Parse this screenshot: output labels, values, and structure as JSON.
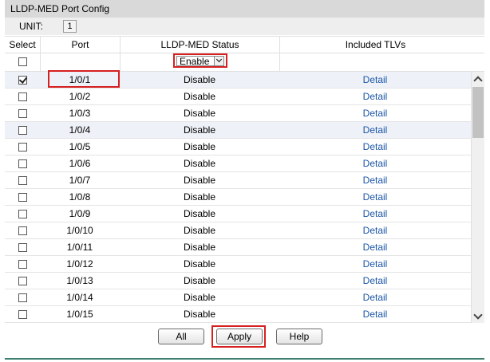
{
  "panel": {
    "title": "LLDP-MED Port Config"
  },
  "unit": {
    "label": "UNIT:",
    "value": "1"
  },
  "columns": {
    "select": "Select",
    "port": "Port",
    "status": "LLDP-MED Status",
    "tlvs": "Included TLVs"
  },
  "bulk_control": {
    "status_select_value": "Enable"
  },
  "rows": [
    {
      "port": "1/0/1",
      "status": "Disable",
      "tlvs_link": "Detail",
      "checked": true
    },
    {
      "port": "1/0/2",
      "status": "Disable",
      "tlvs_link": "Detail",
      "checked": false
    },
    {
      "port": "1/0/3",
      "status": "Disable",
      "tlvs_link": "Detail",
      "checked": false
    },
    {
      "port": "1/0/4",
      "status": "Disable",
      "tlvs_link": "Detail",
      "checked": false
    },
    {
      "port": "1/0/5",
      "status": "Disable",
      "tlvs_link": "Detail",
      "checked": false
    },
    {
      "port": "1/0/6",
      "status": "Disable",
      "tlvs_link": "Detail",
      "checked": false
    },
    {
      "port": "1/0/7",
      "status": "Disable",
      "tlvs_link": "Detail",
      "checked": false
    },
    {
      "port": "1/0/8",
      "status": "Disable",
      "tlvs_link": "Detail",
      "checked": false
    },
    {
      "port": "1/0/9",
      "status": "Disable",
      "tlvs_link": "Detail",
      "checked": false
    },
    {
      "port": "1/0/10",
      "status": "Disable",
      "tlvs_link": "Detail",
      "checked": false
    },
    {
      "port": "1/0/11",
      "status": "Disable",
      "tlvs_link": "Detail",
      "checked": false
    },
    {
      "port": "1/0/12",
      "status": "Disable",
      "tlvs_link": "Detail",
      "checked": false
    },
    {
      "port": "1/0/13",
      "status": "Disable",
      "tlvs_link": "Detail",
      "checked": false
    },
    {
      "port": "1/0/14",
      "status": "Disable",
      "tlvs_link": "Detail",
      "checked": false
    },
    {
      "port": "1/0/15",
      "status": "Disable",
      "tlvs_link": "Detail",
      "checked": false
    }
  ],
  "buttons": {
    "all": "All",
    "apply": "Apply",
    "help": "Help"
  },
  "colors": {
    "highlight": "#d62020",
    "link": "#1a55a6",
    "alt_row": "#eef1f8",
    "title_bg": "#d9d9d9",
    "footer_line": "#3f7f70"
  }
}
